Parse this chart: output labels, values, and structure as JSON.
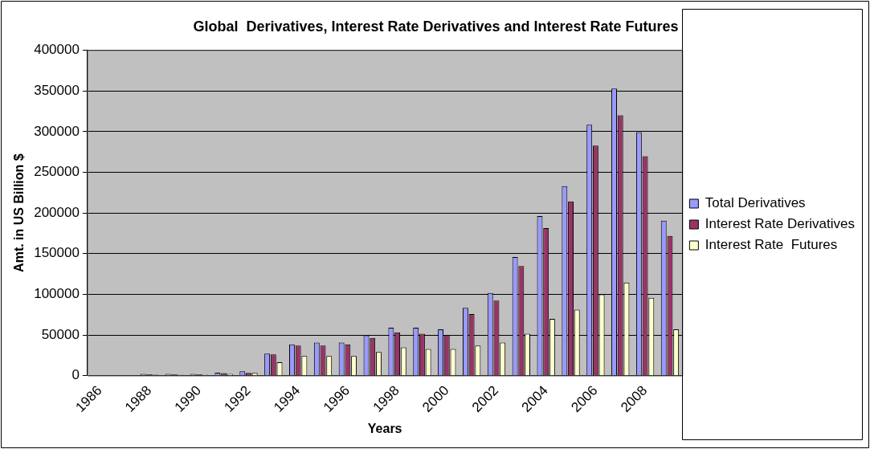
{
  "chart_data": {
    "type": "bar",
    "title": "Global  Derivatives, Interest Rate Derivatives and Interest Rate Futures",
    "xlabel": "Years",
    "ylabel": "Amt. in US Billion $",
    "categories": [
      "1986",
      null,
      "1988",
      null,
      "1990",
      null,
      "1992",
      null,
      "1994",
      null,
      "1996",
      null,
      "1998",
      null,
      "2000",
      null,
      "2002",
      null,
      "2004",
      null,
      "2006",
      null,
      "2008",
      null
    ],
    "series": [
      {
        "name": "Total Derivatives",
        "color": "#9999ff",
        "values": [
          null,
          null,
          2000,
          2000,
          2000,
          3700,
          5300,
          27000,
          38500,
          40500,
          40500,
          49600,
          59000,
          59000,
          57000,
          83400,
          101600,
          145800,
          196200,
          232900,
          308500,
          353000,
          299400,
          190400
        ]
      },
      {
        "name": "Interest Rate Derivatives",
        "color": "#993366",
        "values": [
          null,
          null,
          1500,
          1500,
          1600,
          3000,
          3300,
          26000,
          37000,
          37000,
          38500,
          46400,
          53300,
          51600,
          49600,
          75600,
          92100,
          134600,
          181300,
          214300,
          282900,
          320000,
          269700,
          171800
        ]
      },
      {
        "name": "Interest Rate  Futures",
        "color": "#ffffcc",
        "values": [
          null,
          null,
          1000,
          1100,
          1200,
          2200,
          3300,
          16500,
          24000,
          24000,
          24000,
          29000,
          34700,
          32600,
          32600,
          36800,
          40500,
          51600,
          69800,
          81000,
          100000,
          114400,
          95800,
          57000
        ]
      }
    ],
    "ylim": [
      0,
      400000
    ],
    "yticks": [
      0,
      50000,
      100000,
      150000,
      200000,
      250000,
      300000,
      350000,
      400000
    ],
    "grid": "y",
    "legend": "right"
  }
}
